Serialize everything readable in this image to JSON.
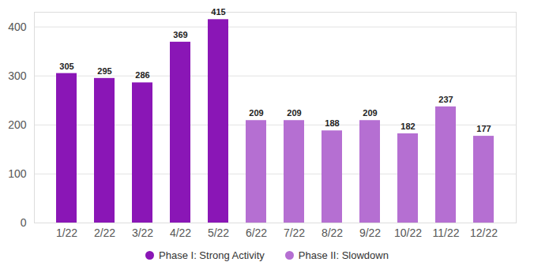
{
  "chart_data": {
    "type": "bar",
    "categories": [
      "1/22",
      "2/22",
      "3/22",
      "4/22",
      "5/22",
      "6/22",
      "7/22",
      "8/22",
      "9/22",
      "10/22",
      "11/22",
      "12/22"
    ],
    "series": [
      {
        "name": "Phase I: Strong Activity",
        "color": "#8a16b6",
        "values": [
          305,
          295,
          286,
          369,
          415,
          null,
          null,
          null,
          null,
          null,
          null,
          null
        ]
      },
      {
        "name": "Phase II: Slowdown",
        "color": "#b56fd2",
        "values": [
          null,
          null,
          null,
          null,
          null,
          209,
          209,
          188,
          209,
          182,
          237,
          177
        ]
      }
    ],
    "ylim": [
      0,
      430
    ],
    "yticks": [
      0,
      100,
      200,
      300,
      400
    ],
    "grid": true,
    "data_labels": true,
    "legend": "bottom"
  }
}
